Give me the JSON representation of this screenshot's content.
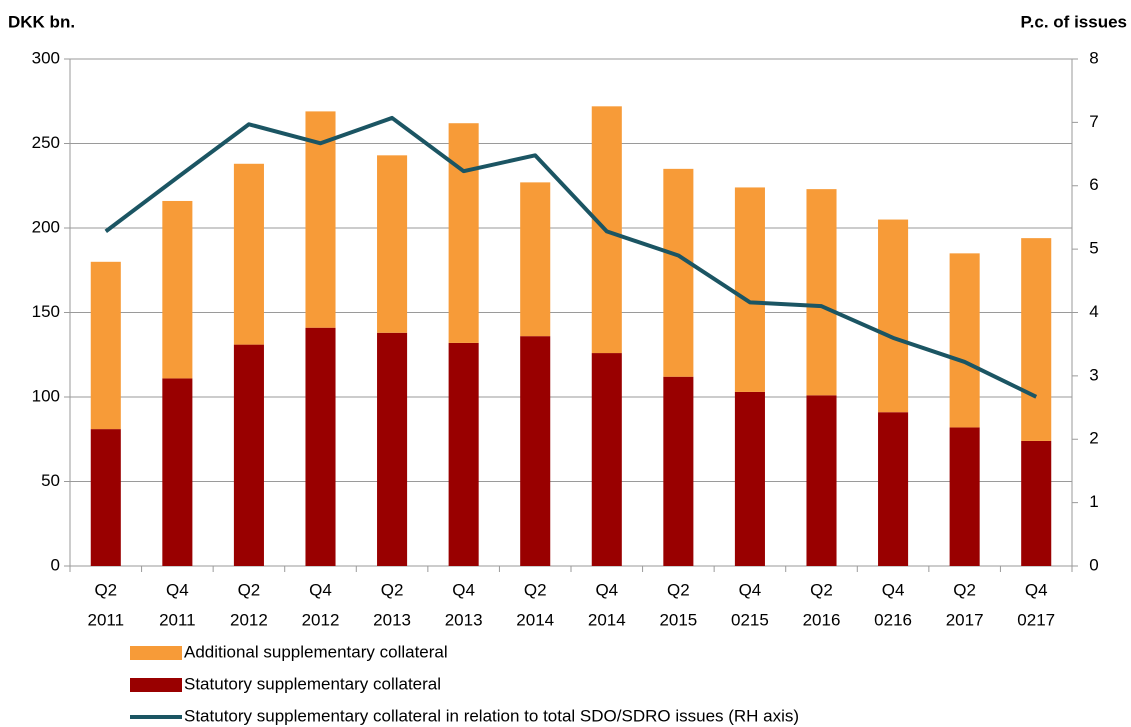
{
  "chart_data": {
    "type": "bar_line",
    "y_label": "DKK bn.",
    "y2_label": "P.c. of issues",
    "categories": [
      [
        "Q2",
        "2011"
      ],
      [
        "Q4",
        "2011"
      ],
      [
        "Q2",
        "2012"
      ],
      [
        "Q4",
        "2012"
      ],
      [
        "Q2",
        "2013"
      ],
      [
        "Q4",
        "2013"
      ],
      [
        "Q2",
        "2014"
      ],
      [
        "Q4",
        "2014"
      ],
      [
        "Q2",
        "2015"
      ],
      [
        "Q4",
        "0215"
      ],
      [
        "Q2",
        "2016"
      ],
      [
        "Q4",
        "0216"
      ],
      [
        "Q2",
        "2017"
      ],
      [
        "Q4",
        "0217"
      ]
    ],
    "series": [
      {
        "name": "Additional supplementary collateral",
        "type": "bar",
        "color": "#f79b38",
        "values": [
          99,
          105,
          107,
          128,
          105,
          130,
          91,
          146,
          123,
          121,
          122,
          114,
          103,
          120
        ]
      },
      {
        "name": "Statutory supplementary collateral",
        "type": "bar",
        "color": "#990000",
        "values": [
          81,
          111,
          131,
          141,
          138,
          132,
          136,
          126,
          112,
          103,
          101,
          91,
          82,
          74
        ]
      },
      {
        "name": "Statutory supplementary collateral in relation to total SDO/SDRO issues (RH axis)",
        "type": "line",
        "axis": "y2",
        "color": "#1b5563",
        "values": [
          5.28,
          6.13,
          6.97,
          6.67,
          7.07,
          6.23,
          6.48,
          5.28,
          4.9,
          4.16,
          4.1,
          3.6,
          3.22,
          2.67
        ]
      }
    ],
    "ylim": [
      0,
      300
    ],
    "yticks": [
      0,
      50,
      100,
      150,
      200,
      250,
      300
    ],
    "y2lim": [
      0,
      8
    ],
    "y2ticks": [
      0,
      1,
      2,
      3,
      4,
      5,
      6,
      7,
      8
    ],
    "grid": true
  }
}
